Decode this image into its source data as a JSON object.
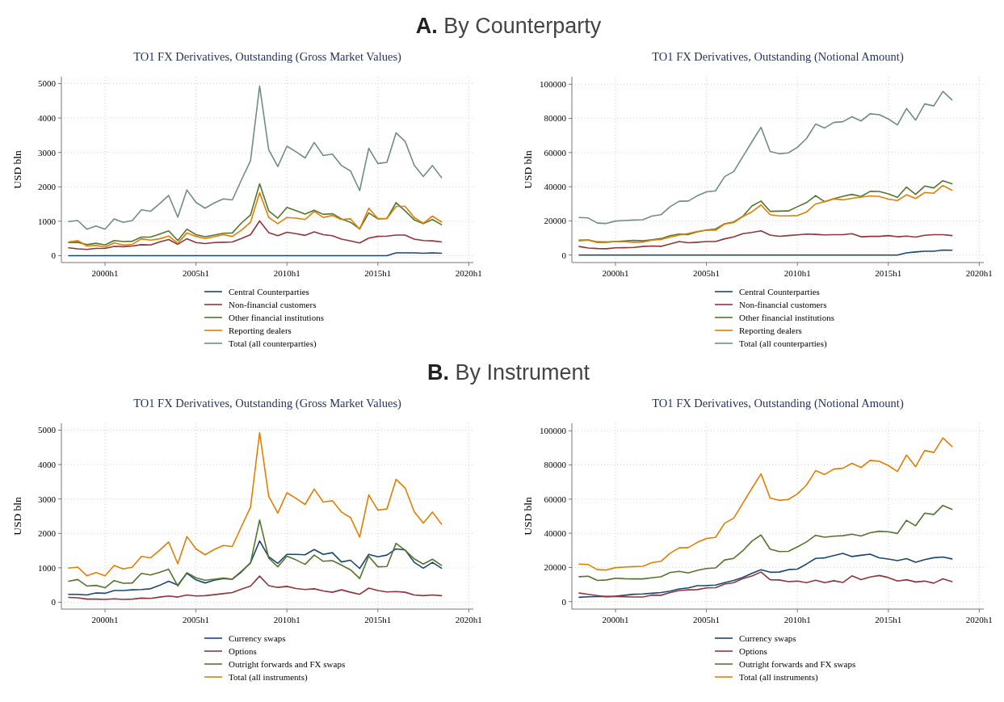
{
  "chart_data": [
    {
      "type": "line",
      "title": "TO1 FX Derivatives, Outstanding (Gross Market Values)",
      "annotations": [
        "A. By Counterparty"
      ],
      "ylabel": "USD bln",
      "ylim": [
        -200,
        5200
      ],
      "yticks": [
        0,
        1000,
        2000,
        3000,
        4000,
        5000
      ],
      "grid": true,
      "legend": "bottom",
      "categories": [
        null,
        null,
        null,
        null,
        "2000h1",
        null,
        null,
        null,
        null,
        null,
        null,
        null,
        null,
        null,
        "2005h1",
        null,
        null,
        null,
        null,
        null,
        null,
        null,
        null,
        null,
        "2010h1",
        null,
        null,
        null,
        null,
        null,
        null,
        null,
        null,
        null,
        "2015h1",
        null,
        null,
        null,
        null,
        null,
        null,
        null,
        null,
        null,
        "2020h1"
      ],
      "series": [
        {
          "name": "Central Counterparties",
          "color": "#1a476f",
          "values": [
            0,
            0,
            0,
            0,
            0,
            0,
            0,
            0,
            0,
            0,
            0,
            0,
            0,
            0,
            0,
            0,
            0,
            0,
            0,
            0,
            0,
            0,
            0,
            0,
            0,
            0,
            0,
            0,
            0,
            0,
            0,
            0,
            0,
            0,
            0,
            0,
            80,
            80,
            80,
            70,
            80,
            70,
            null,
            null,
            null
          ]
        },
        {
          "name": "Non-financial customers",
          "color": "#90353b",
          "values": [
            230,
            200,
            180,
            210,
            210,
            270,
            260,
            280,
            320,
            310,
            400,
            470,
            330,
            490,
            380,
            350,
            380,
            390,
            400,
            500,
            610,
            1010,
            670,
            580,
            680,
            640,
            590,
            690,
            610,
            580,
            480,
            430,
            370,
            510,
            560,
            570,
            600,
            600,
            480,
            440,
            430,
            400,
            null,
            null,
            null
          ]
        },
        {
          "name": "Other financial institutions",
          "color": "#55752f",
          "values": [
            380,
            390,
            320,
            360,
            310,
            440,
            410,
            420,
            540,
            540,
            630,
            720,
            440,
            770,
            610,
            550,
            600,
            650,
            660,
            950,
            1180,
            2090,
            1300,
            1090,
            1400,
            1310,
            1210,
            1320,
            1200,
            1220,
            1070,
            970,
            780,
            1240,
            1070,
            1080,
            1540,
            1300,
            1040,
            930,
            1050,
            900,
            null,
            null,
            null
          ]
        },
        {
          "name": "Reporting dealers",
          "color": "#e37e00",
          "values": [
            400,
            440,
            280,
            300,
            250,
            370,
            310,
            330,
            490,
            450,
            490,
            570,
            360,
            660,
            560,
            500,
            550,
            610,
            560,
            740,
            970,
            1830,
            1110,
            930,
            1110,
            1090,
            1050,
            1290,
            1110,
            1170,
            1050,
            1070,
            770,
            1380,
            1080,
            1080,
            1430,
            1430,
            1110,
            940,
            1150,
            980,
            null,
            null,
            null
          ]
        },
        {
          "name": "Total (all counterparties)",
          "color": "#6e8e84",
          "values": [
            990,
            1020,
            770,
            860,
            770,
            1070,
            970,
            1020,
            1330,
            1290,
            1510,
            1750,
            1120,
            1910,
            1550,
            1380,
            1530,
            1650,
            1620,
            2200,
            2760,
            4930,
            3080,
            2590,
            3180,
            3020,
            2840,
            3290,
            2910,
            2950,
            2620,
            2460,
            1890,
            3120,
            2680,
            2710,
            3570,
            3320,
            2630,
            2300,
            2620,
            2270,
            null,
            null,
            null
          ]
        }
      ]
    },
    {
      "type": "line",
      "title": "TO1 FX Derivatives, Outstanding (Notional Amount)",
      "ylabel": "USD bln",
      "ylim": [
        -4400,
        104400
      ],
      "yticks": [
        0,
        20000,
        40000,
        60000,
        80000,
        100000
      ],
      "grid": true,
      "legend": "bottom",
      "categories": [
        null,
        null,
        null,
        null,
        "2000h1",
        null,
        null,
        null,
        null,
        null,
        null,
        null,
        null,
        null,
        "2005h1",
        null,
        null,
        null,
        null,
        null,
        null,
        null,
        null,
        null,
        "2010h1",
        null,
        null,
        null,
        null,
        null,
        null,
        null,
        null,
        null,
        "2015h1",
        null,
        null,
        null,
        null,
        null,
        null,
        null,
        null,
        null,
        "2020h1"
      ],
      "series": [
        {
          "name": "Central Counterparties",
          "color": "#1a476f",
          "values": [
            0,
            0,
            0,
            0,
            0,
            0,
            0,
            0,
            0,
            0,
            0,
            0,
            0,
            0,
            0,
            0,
            0,
            0,
            0,
            0,
            0,
            0,
            0,
            0,
            0,
            0,
            0,
            0,
            0,
            0,
            0,
            0,
            0,
            0,
            0,
            0,
            1300,
            1800,
            2200,
            2200,
            2900,
            2800,
            null,
            null,
            null
          ]
        },
        {
          "name": "Non-financial customers",
          "color": "#90353b",
          "values": [
            5000,
            4100,
            3800,
            3700,
            4200,
            4300,
            4500,
            5000,
            5300,
            5100,
            6500,
            7900,
            7200,
            7500,
            7900,
            7900,
            9500,
            10600,
            12500,
            13200,
            14200,
            11700,
            11000,
            11400,
            11800,
            12300,
            12100,
            11800,
            11900,
            11900,
            12500,
            10700,
            10900,
            10900,
            11400,
            10700,
            11100,
            10500,
            11600,
            11900,
            11900,
            11400,
            null,
            null,
            null
          ]
        },
        {
          "name": "Other financial institutions",
          "color": "#55752f",
          "values": [
            8400,
            8800,
            7700,
            7600,
            7900,
            8200,
            8600,
            8300,
            9000,
            9600,
            11300,
            12300,
            12000,
            13600,
            14600,
            15200,
            18300,
            19400,
            22700,
            28700,
            31600,
            25600,
            25700,
            25800,
            28300,
            30700,
            34800,
            31200,
            33000,
            34400,
            35500,
            34300,
            37300,
            37200,
            35800,
            33800,
            39800,
            35500,
            40400,
            39300,
            43500,
            41700,
            null,
            null,
            null
          ]
        },
        {
          "name": "Reporting dealers",
          "color": "#e37e00",
          "values": [
            8800,
            8800,
            7300,
            7400,
            7900,
            7800,
            7500,
            7600,
            8700,
            9100,
            10500,
            11700,
            12600,
            13800,
            14500,
            14500,
            18200,
            19000,
            22600,
            25300,
            29300,
            23600,
            22900,
            22900,
            23100,
            25200,
            29900,
            31300,
            32900,
            32300,
            33200,
            33900,
            34600,
            34300,
            32700,
            31900,
            35300,
            33100,
            36600,
            36200,
            40700,
            37900,
            null,
            null,
            null
          ]
        },
        {
          "name": "Total (all counterparties)",
          "color": "#6e8e84",
          "values": [
            22000,
            21700,
            18700,
            18500,
            19900,
            20200,
            20500,
            20700,
            22800,
            23600,
            28300,
            31500,
            31600,
            34700,
            37000,
            37600,
            45900,
            48900,
            57600,
            66300,
            74800,
            60600,
            59300,
            59800,
            63100,
            68200,
            76700,
            74400,
            77600,
            78100,
            81000,
            78500,
            82700,
            82200,
            79700,
            76200,
            85800,
            79000,
            88500,
            87300,
            95800,
            90900,
            null,
            null,
            null
          ]
        }
      ]
    },
    {
      "type": "line",
      "title": "TO1 FX Derivatives, Outstanding (Gross Market Values)",
      "annotations": [
        "B. By Instrument"
      ],
      "ylabel": "USD bln",
      "ylim": [
        -200,
        5200
      ],
      "yticks": [
        0,
        1000,
        2000,
        3000,
        4000,
        5000
      ],
      "grid": true,
      "legend": "bottom",
      "categories": [
        null,
        null,
        null,
        null,
        "2000h1",
        null,
        null,
        null,
        null,
        null,
        null,
        null,
        null,
        null,
        "2005h1",
        null,
        null,
        null,
        null,
        null,
        null,
        null,
        null,
        null,
        "2010h1",
        null,
        null,
        null,
        null,
        null,
        null,
        null,
        null,
        null,
        "2015h1",
        null,
        null,
        null,
        null,
        null,
        null,
        null,
        null,
        null,
        "2020h1"
      ],
      "series": [
        {
          "name": "Currency swaps",
          "color": "#1a476f",
          "values": [
            230,
            230,
            210,
            270,
            260,
            340,
            340,
            360,
            370,
            390,
            490,
            610,
            500,
            840,
            650,
            560,
            640,
            690,
            670,
            880,
            1150,
            1780,
            1320,
            1130,
            1390,
            1390,
            1380,
            1530,
            1390,
            1440,
            1170,
            1220,
            980,
            1390,
            1320,
            1370,
            1550,
            1520,
            1160,
            990,
            1160,
            990,
            null,
            null,
            null
          ]
        },
        {
          "name": "Options",
          "color": "#90353b",
          "values": [
            140,
            130,
            90,
            90,
            80,
            100,
            80,
            90,
            120,
            110,
            150,
            180,
            150,
            210,
            180,
            190,
            220,
            250,
            280,
            380,
            470,
            760,
            480,
            430,
            460,
            400,
            370,
            390,
            330,
            290,
            360,
            290,
            230,
            410,
            340,
            300,
            310,
            290,
            210,
            190,
            210,
            190,
            null,
            null,
            null
          ]
        },
        {
          "name": "Outright forwards and FX swaps",
          "color": "#55752f",
          "values": [
            610,
            660,
            470,
            490,
            420,
            630,
            550,
            560,
            840,
            790,
            870,
            960,
            470,
            860,
            710,
            640,
            670,
            700,
            670,
            900,
            1140,
            2390,
            1280,
            1030,
            1340,
            1230,
            1100,
            1370,
            1190,
            1210,
            1080,
            940,
            690,
            1340,
            1030,
            1040,
            1710,
            1510,
            1260,
            1110,
            1250,
            1070,
            null,
            null,
            null
          ]
        },
        {
          "name": "Total (all instruments)",
          "color": "#e37e00",
          "values": [
            990,
            1020,
            770,
            860,
            770,
            1070,
            970,
            1020,
            1330,
            1290,
            1510,
            1750,
            1120,
            1910,
            1550,
            1380,
            1530,
            1650,
            1620,
            2200,
            2760,
            4930,
            3080,
            2590,
            3180,
            3020,
            2840,
            3290,
            2910,
            2950,
            2620,
            2460,
            1890,
            3120,
            2680,
            2710,
            3570,
            3320,
            2630,
            2300,
            2620,
            2270,
            null,
            null,
            null
          ]
        }
      ]
    },
    {
      "type": "line",
      "title": "TO1 FX Derivatives, Outstanding (Notional Amount)",
      "ylabel": "USD bln",
      "ylim": [
        -4400,
        104400
      ],
      "yticks": [
        0,
        20000,
        40000,
        60000,
        80000,
        100000
      ],
      "grid": true,
      "legend": "bottom",
      "categories": [
        null,
        null,
        null,
        null,
        "2000h1",
        null,
        null,
        null,
        null,
        null,
        null,
        null,
        null,
        null,
        "2005h1",
        null,
        null,
        null,
        null,
        null,
        null,
        null,
        null,
        null,
        "2010h1",
        null,
        null,
        null,
        null,
        null,
        null,
        null,
        null,
        null,
        "2015h1",
        null,
        null,
        null,
        null,
        null,
        null,
        null,
        null,
        null,
        "2020h1"
      ],
      "series": [
        {
          "name": "Currency swaps",
          "color": "#1a476f",
          "values": [
            2500,
            2800,
            2900,
            3000,
            3200,
            3700,
            4300,
            4500,
            4900,
            5300,
            6100,
            7400,
            8000,
            9300,
            9400,
            9700,
            11100,
            12400,
            14200,
            16500,
            18700,
            17200,
            17300,
            18700,
            19000,
            22000,
            25300,
            25600,
            26900,
            28200,
            26400,
            27100,
            27800,
            25600,
            24900,
            24000,
            25200,
            23000,
            24600,
            25700,
            26100,
            25000,
            null,
            null,
            null
          ]
        },
        {
          "name": "Options",
          "color": "#90353b",
          "values": [
            5000,
            4200,
            3500,
            2800,
            3000,
            2800,
            2700,
            2700,
            3800,
            3700,
            5300,
            6500,
            6900,
            7000,
            8000,
            8100,
            10300,
            11100,
            13500,
            15000,
            17300,
            12800,
            12700,
            11700,
            12000,
            11100,
            12500,
            11100,
            12200,
            11200,
            15100,
            12900,
            14400,
            15300,
            14100,
            12000,
            12800,
            11500,
            12000,
            10800,
            13300,
            11700,
            null,
            null,
            null
          ]
        },
        {
          "name": "Outright forwards and FX swaps",
          "color": "#55752f",
          "values": [
            14600,
            14900,
            12400,
            12700,
            13700,
            13400,
            13300,
            13300,
            13900,
            14500,
            17000,
            17700,
            16800,
            18300,
            19400,
            19700,
            24400,
            25300,
            29800,
            35400,
            39000,
            30700,
            29300,
            29400,
            32000,
            34900,
            38800,
            37700,
            38300,
            38600,
            39500,
            38400,
            40300,
            41200,
            40900,
            39900,
            47600,
            44400,
            51800,
            51000,
            56300,
            54000,
            null,
            null,
            null
          ]
        },
        {
          "name": "Total (all instruments)",
          "color": "#e37e00",
          "values": [
            22000,
            21700,
            18700,
            18500,
            19900,
            20200,
            20500,
            20700,
            22800,
            23600,
            28300,
            31500,
            31600,
            34700,
            37000,
            37600,
            45900,
            48900,
            57600,
            66300,
            74800,
            60600,
            59300,
            59800,
            63100,
            68200,
            76700,
            74400,
            77600,
            78100,
            81000,
            78500,
            82700,
            82200,
            79700,
            76200,
            85800,
            79000,
            88500,
            87300,
            95800,
            90900,
            null,
            null,
            null
          ]
        }
      ]
    }
  ]
}
